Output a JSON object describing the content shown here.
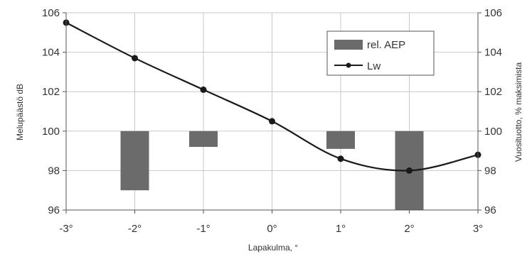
{
  "chart_data": {
    "type": "bar+line",
    "categories": [
      "-3°",
      "-2°",
      "-1°",
      "0°",
      "1°",
      "2°",
      "3°"
    ],
    "x": [
      -3,
      -2,
      -1,
      0,
      1,
      2,
      3
    ],
    "xlabel": "Lapakulma, °",
    "ylabel_left": "Melupäästö dB",
    "ylabel_right": "Vuosituotto, % maksimista",
    "ylim": [
      96,
      106
    ],
    "yticks": [
      96,
      98,
      100,
      102,
      104,
      106
    ],
    "grid": true,
    "legend_position": "top-right",
    "bar_baseline": 100,
    "series": [
      {
        "name": "rel. AEP",
        "kind": "bar",
        "color": "#6b6b6b",
        "x": [
          -3,
          -2,
          -1,
          0,
          1,
          2,
          3
        ],
        "values": [
          null,
          97.0,
          99.2,
          null,
          99.1,
          96.0,
          null
        ]
      },
      {
        "name": "Lw",
        "kind": "line",
        "color": "#1a1a1a",
        "x": [
          -3,
          -2,
          -1,
          0,
          1,
          2,
          3
        ],
        "values": [
          105.5,
          103.7,
          102.1,
          100.5,
          98.6,
          98.0,
          98.8
        ]
      }
    ]
  }
}
